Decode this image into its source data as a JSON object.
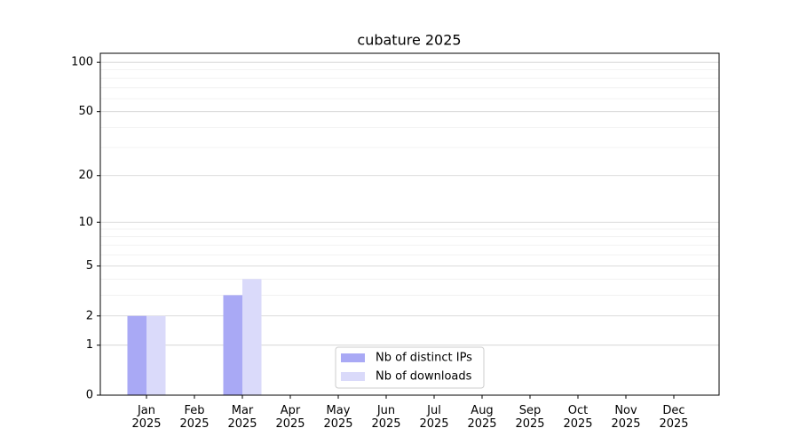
{
  "chart_data": {
    "type": "bar",
    "title": "cubature 2025",
    "categories": [
      [
        "Jan",
        "2025"
      ],
      [
        "Feb",
        "2025"
      ],
      [
        "Mar",
        "2025"
      ],
      [
        "Apr",
        "2025"
      ],
      [
        "May",
        "2025"
      ],
      [
        "Jun",
        "2025"
      ],
      [
        "Jul",
        "2025"
      ],
      [
        "Aug",
        "2025"
      ],
      [
        "Sep",
        "2025"
      ],
      [
        "Oct",
        "2025"
      ],
      [
        "Nov",
        "2025"
      ],
      [
        "Dec",
        "2025"
      ]
    ],
    "series": [
      {
        "name": "Nb of distinct IPs",
        "color": "#a9a9f5",
        "values": [
          2,
          0,
          3,
          0,
          0,
          0,
          0,
          0,
          0,
          0,
          0,
          0
        ]
      },
      {
        "name": "Nb of downloads",
        "color": "#dadafa",
        "values": [
          2,
          0,
          4,
          0,
          0,
          0,
          0,
          0,
          0,
          0,
          0,
          0
        ]
      }
    ],
    "yscale": "log1p",
    "ylim": [
      0,
      113.5
    ],
    "yticks": [
      0,
      1,
      2,
      5,
      10,
      20,
      50,
      100
    ],
    "minor_yticks": [
      3,
      4,
      6,
      7,
      8,
      9,
      30,
      40,
      60,
      70,
      80,
      90
    ],
    "grid": true,
    "legend": "lower center"
  }
}
